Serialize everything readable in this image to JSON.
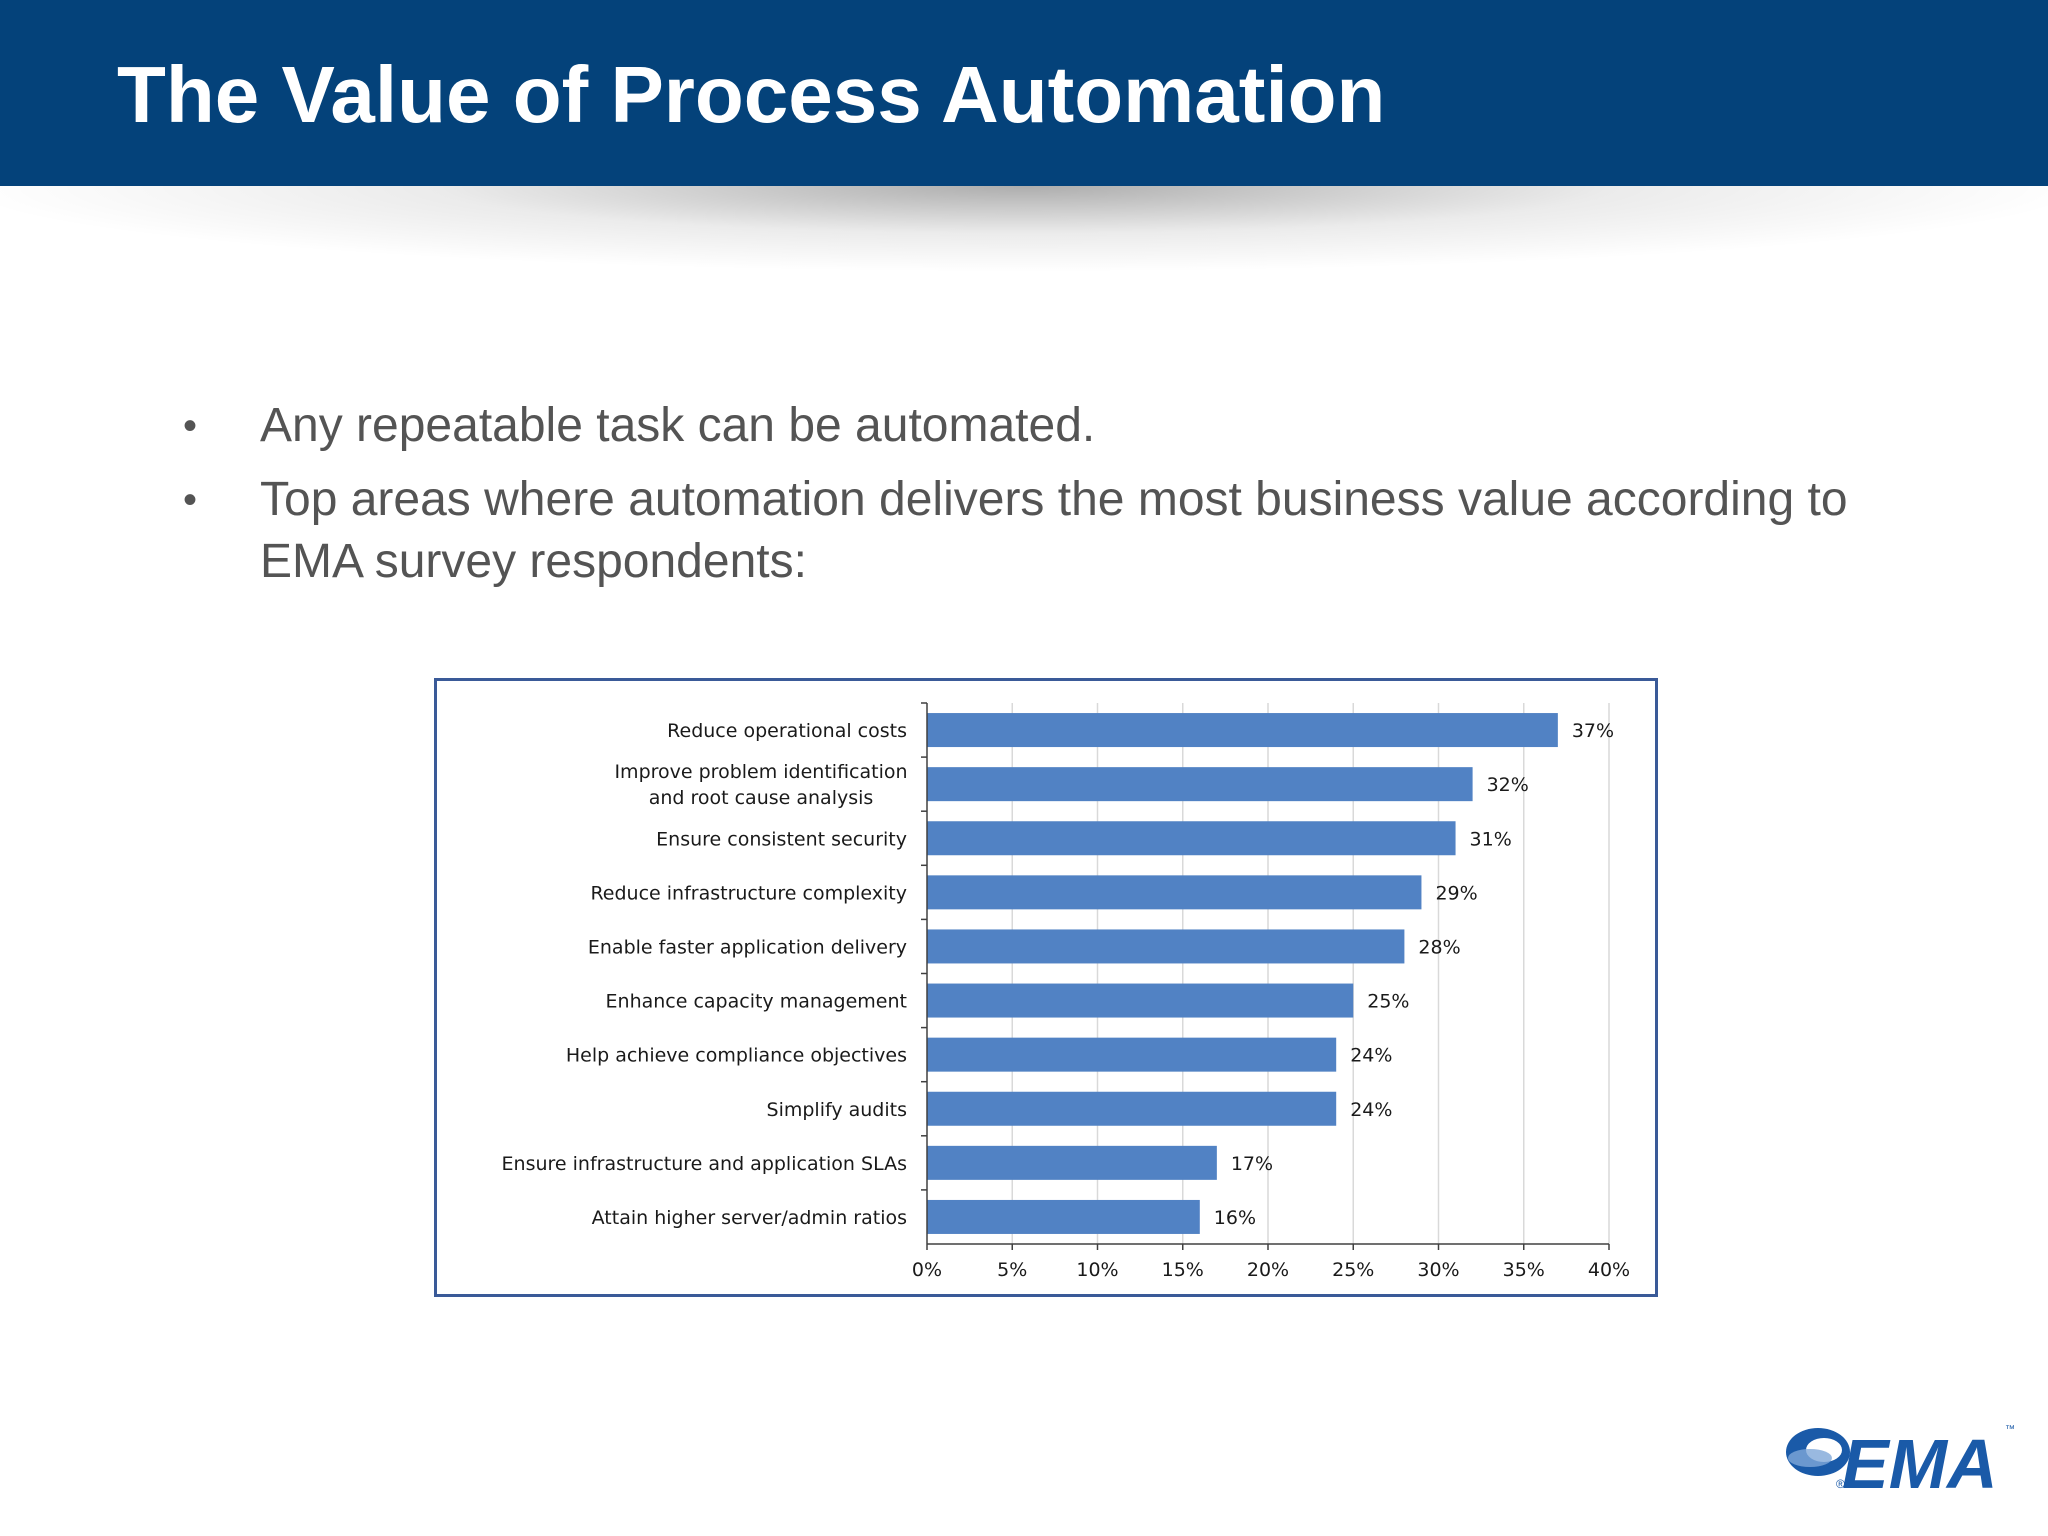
{
  "title": "The Value of Process Automation",
  "bullets": [
    "Any repeatable task can be automated.",
    "Top areas where automation delivers the most business value according to EMA survey respondents:"
  ],
  "bullet_marker": "•",
  "colors": {
    "title_bar": "#04427a",
    "bar": "#5182c4",
    "logo_blue": "#1a5aa8"
  },
  "chart_data": {
    "type": "bar",
    "orientation": "horizontal",
    "categories": [
      "Reduce operational costs",
      "Improve problem identification\nand root cause analysis",
      "Ensure consistent security",
      "Reduce infrastructure complexity",
      "Enable faster application delivery",
      "Enhance capacity management",
      "Help achieve compliance objectives",
      "Simplify audits",
      "Ensure infrastructure and application SLAs",
      "Attain higher server/admin ratios"
    ],
    "values": [
      37,
      32,
      31,
      29,
      28,
      25,
      24,
      24,
      17,
      16
    ],
    "value_labels": [
      "37%",
      "32%",
      "31%",
      "29%",
      "28%",
      "25%",
      "24%",
      "24%",
      "17%",
      "16%"
    ],
    "x_ticks": [
      "0%",
      "5%",
      "10%",
      "15%",
      "20%",
      "25%",
      "30%",
      "35%",
      "40%"
    ],
    "xlim": [
      0,
      40
    ],
    "grid": "vertical",
    "title": "",
    "xlabel": "",
    "ylabel": ""
  },
  "logo": {
    "text": "EMA",
    "tm": "™",
    "reg": "®"
  }
}
